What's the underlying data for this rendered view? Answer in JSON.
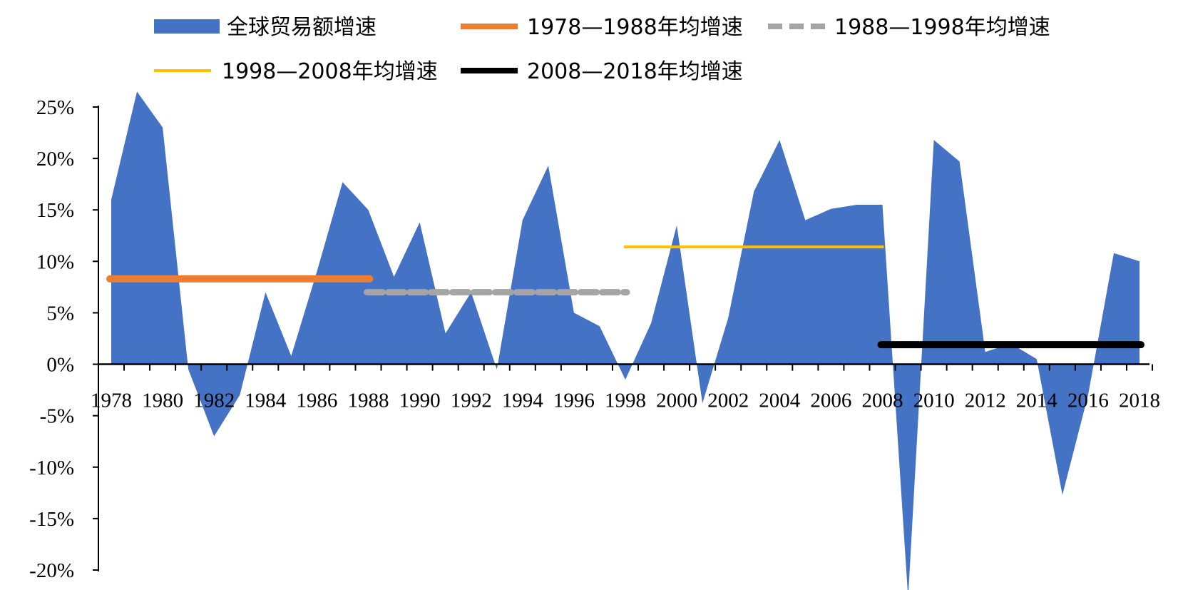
{
  "chart_data": {
    "type": "area",
    "x": [
      1978,
      1979,
      1980,
      1981,
      1982,
      1983,
      1984,
      1985,
      1986,
      1987,
      1988,
      1989,
      1990,
      1991,
      1992,
      1993,
      1994,
      1995,
      1996,
      1997,
      1998,
      1999,
      2000,
      2001,
      2002,
      2003,
      2004,
      2005,
      2006,
      2007,
      2008,
      2009,
      2010,
      2011,
      2012,
      2013,
      2014,
      2015,
      2016,
      2017,
      2018
    ],
    "x_tick_labels": [
      "1978",
      "1980",
      "1982",
      "1984",
      "1986",
      "1988",
      "1990",
      "1992",
      "1994",
      "1996",
      "1998",
      "2000",
      "2002",
      "2004",
      "2006",
      "2008",
      "2010",
      "2012",
      "2014",
      "2016",
      "2018"
    ],
    "y_tick_labels": [
      "25%",
      "20%",
      "15%",
      "10%",
      "5%",
      "0%",
      "-5%",
      "-10%",
      "-15%",
      "-20%"
    ],
    "ylim": [
      -20,
      25
    ],
    "series": [
      {
        "name": "全球贸易额增速",
        "kind": "area",
        "color": "#4472C4",
        "values": [
          16.0,
          26.5,
          23.0,
          -0.5,
          -7.0,
          -3.0,
          7.0,
          0.8,
          9.0,
          17.7,
          15.0,
          8.5,
          13.8,
          3.0,
          7.0,
          -0.5,
          14.0,
          19.3,
          5.0,
          3.7,
          -1.5,
          4.0,
          13.5,
          -3.8,
          4.5,
          16.8,
          21.8,
          14.0,
          15.1,
          15.5,
          15.5,
          -22.7,
          21.8,
          19.7,
          1.2,
          2.0,
          0.5,
          -12.7,
          -3.0,
          10.8,
          10.0
        ]
      },
      {
        "name": "1978—1988年均增速",
        "kind": "line",
        "color": "#ED7D31",
        "style": "solid-thick",
        "x_range": [
          1978,
          1988
        ],
        "value": 8.3
      },
      {
        "name": "1988—1998年均增速",
        "kind": "line",
        "color": "#A5A5A5",
        "style": "dashed",
        "x_range": [
          1988,
          1998
        ],
        "value": 7.0
      },
      {
        "name": "1998—2008年均增速",
        "kind": "line",
        "color": "#FFC000",
        "style": "solid-thin",
        "x_range": [
          1998,
          2008
        ],
        "value": 11.4
      },
      {
        "name": "2008—2018年均增速",
        "kind": "line",
        "color": "#000000",
        "style": "solid-thick",
        "x_range": [
          2008,
          2018
        ],
        "value": 1.9
      }
    ],
    "legend": "top"
  }
}
